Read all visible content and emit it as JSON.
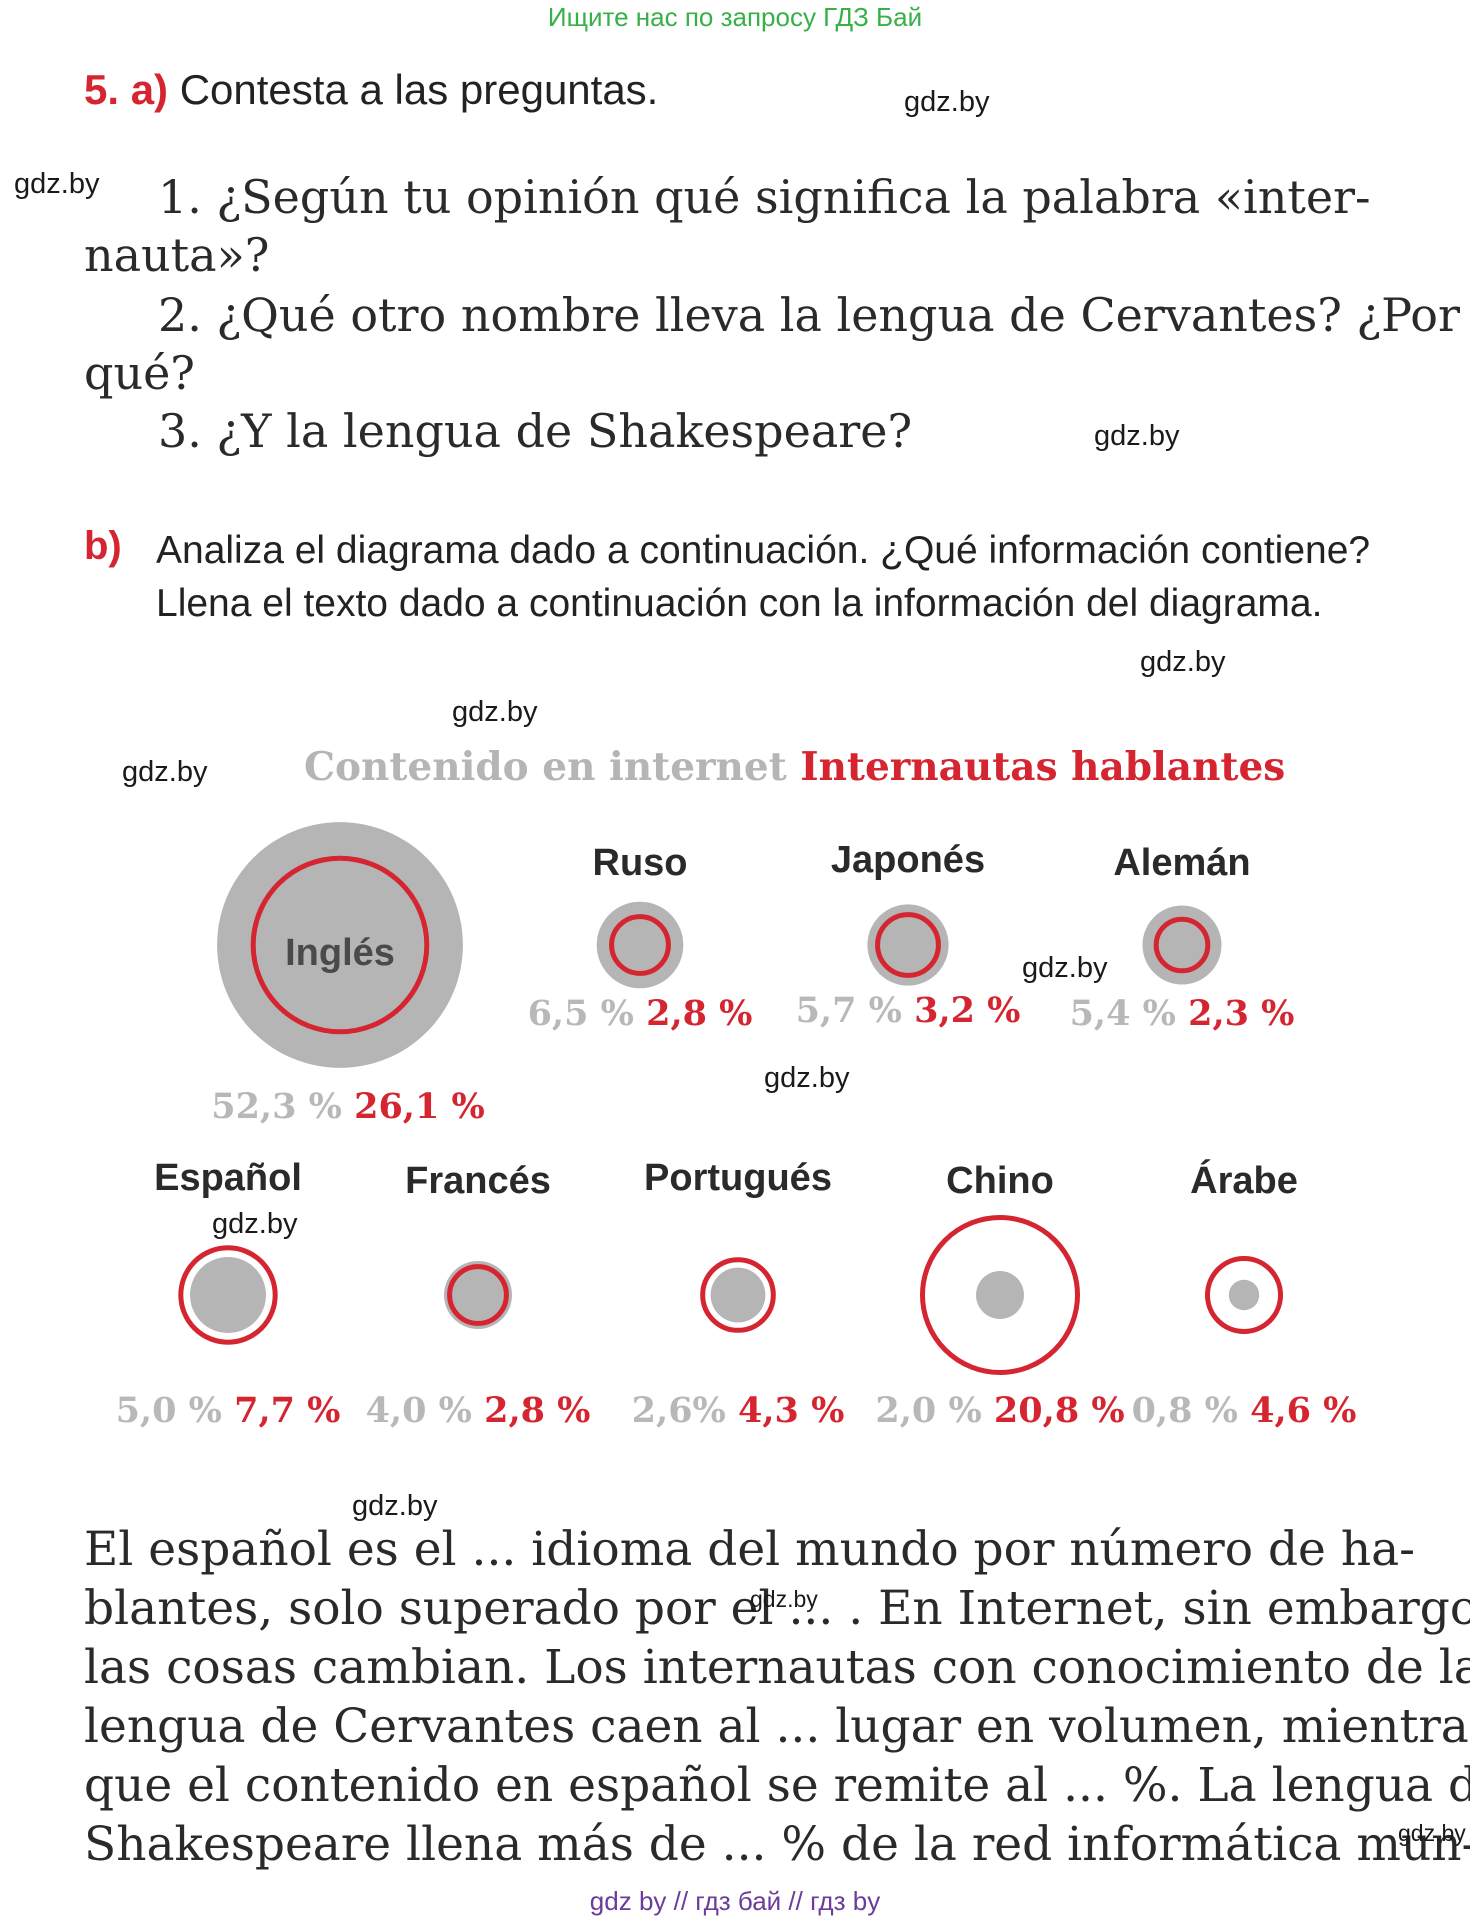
{
  "header_banner": "Ищите нас по запросу ГДЗ Бай",
  "task_a": {
    "number": "5. a)",
    "text": "Contesta a las preguntas."
  },
  "questions": {
    "q1_line1": "1. ¿Según tu opinión qué significa la palabra «inter-",
    "q1_line2": "nauta»?",
    "q2_line1": "2. ¿Qué otro nombre lleva la lengua de Cervantes? ¿Por",
    "q2_line2": "qué?",
    "q3_line1": "3. ¿Y la lengua de Shakespeare?"
  },
  "task_b": {
    "label": "b)",
    "text": "Analiza el diagrama dado a continuación. ¿Qué información contiene? Llena el texto dado a continuación con la información del diagrama."
  },
  "watermark": "gdz.by",
  "chart_data": {
    "type": "bubble",
    "title_series_1": "Contenido en internet",
    "title_series_2": "Internautas hablantes",
    "series": [
      {
        "name": "Contenido en internet",
        "color": "#b5b5b5"
      },
      {
        "name": "Internautas hablantes",
        "color": "#d42530"
      }
    ],
    "items": [
      {
        "language": "Inglés",
        "contenido": "52,3 %",
        "internautas": "26,1 %",
        "content_value": 52.3,
        "users_value": 26.1
      },
      {
        "language": "Ruso",
        "contenido": "6,5 %",
        "internautas": "2,8 %",
        "content_value": 6.5,
        "users_value": 2.8
      },
      {
        "language": "Japonés",
        "contenido": "5,7 %",
        "internautas": "3,2 %",
        "content_value": 5.7,
        "users_value": 3.2
      },
      {
        "language": "Alemán",
        "contenido": "5,4 %",
        "internautas": "2,3 %",
        "content_value": 5.4,
        "users_value": 2.3
      },
      {
        "language": "Español",
        "contenido": "5,0 %",
        "internautas": "7,7 %",
        "content_value": 5.0,
        "users_value": 7.7
      },
      {
        "language": "Francés",
        "contenido": "4,0 %",
        "internautas": "2,8 %",
        "content_value": 4.0,
        "users_value": 2.8
      },
      {
        "language": "Portugués",
        "contenido": "2,6%",
        "internautas": "4,3 %",
        "content_value": 2.6,
        "users_value": 4.3
      },
      {
        "language": "Chino",
        "contenido": "2,0 %",
        "internautas": "20,8 %",
        "content_value": 2.0,
        "users_value": 20.8
      },
      {
        "language": "Árabe",
        "contenido": "0,8 %",
        "internautas": "4,6 %",
        "content_value": 0.8,
        "users_value": 4.6
      }
    ]
  },
  "passage": [
    "El español es el ... idioma del mundo por número de ha-",
    "blantes, solo superado por el ... . En Internet, sin embargo,",
    "las cosas cambian. Los internautas con conocimiento de la",
    "lengua de Cervantes caen al ... lugar en volumen, mientras",
    "que el contenido en español se remite al ... %. La lengua de",
    "Shakespeare llena más de ... % de la red informática mun-"
  ],
  "footer": "gdz by  //  гдз бай  //  гдз by"
}
